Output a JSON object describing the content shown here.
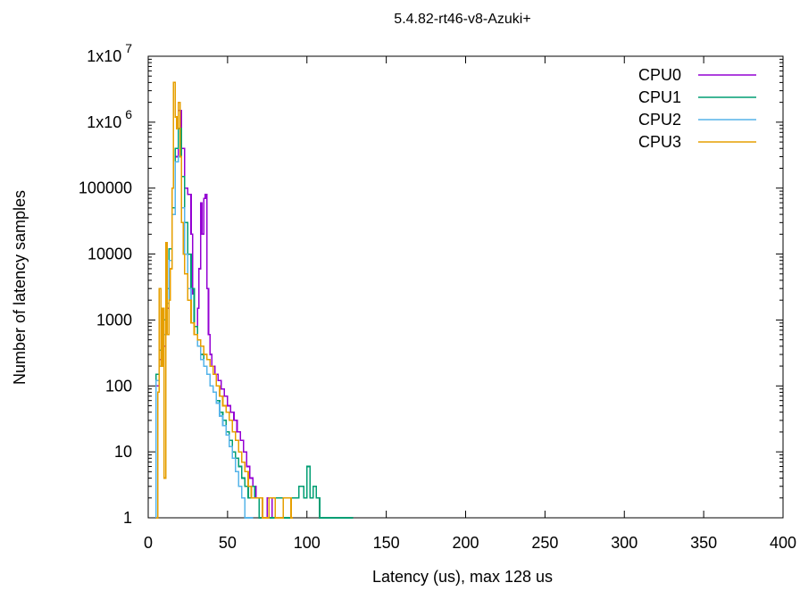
{
  "chart_data": {
    "type": "line",
    "title": "5.4.82-rt46-v8-Azuki+",
    "xlabel": "Latency (us), max 128 us",
    "ylabel": "Number of latency samples",
    "xlim": [
      0,
      400
    ],
    "ylim": [
      1,
      10000000
    ],
    "yscale": "log",
    "grid": false,
    "legend_position": "top-right",
    "x_ticks": [
      0,
      50,
      100,
      150,
      200,
      250,
      300,
      350,
      400
    ],
    "x_tick_labels": [
      "0",
      "50",
      "100",
      "150",
      "200",
      "250",
      "300",
      "350",
      "400"
    ],
    "y_ticks": [
      1,
      10,
      100,
      1000,
      10000,
      100000,
      1000000,
      10000000
    ],
    "y_tick_labels": [
      {
        "base": "1",
        "exp": ""
      },
      {
        "base": "10",
        "exp": ""
      },
      {
        "base": "100",
        "exp": ""
      },
      {
        "base": "1000",
        "exp": ""
      },
      {
        "base": "10000",
        "exp": ""
      },
      {
        "base": "100000",
        "exp": ""
      },
      {
        "base": "1x10",
        "exp": "6"
      },
      {
        "base": "1x10",
        "exp": "7"
      }
    ],
    "series": [
      {
        "name": "CPU0",
        "color": "#9400d3",
        "points": [
          [
            5,
            100
          ],
          [
            7,
            250
          ],
          [
            9,
            400
          ],
          [
            11,
            1500
          ],
          [
            13,
            6000
          ],
          [
            15,
            40000
          ],
          [
            17,
            300000
          ],
          [
            19,
            1500000
          ],
          [
            21,
            400000
          ],
          [
            23,
            100000
          ],
          [
            25,
            80000
          ],
          [
            27,
            20000
          ],
          [
            28,
            2500
          ],
          [
            29,
            800
          ],
          [
            31,
            1500
          ],
          [
            32,
            6000
          ],
          [
            33,
            60000
          ],
          [
            34,
            20000
          ],
          [
            35,
            70000
          ],
          [
            36,
            80000
          ],
          [
            37,
            3000
          ],
          [
            38,
            600
          ],
          [
            39,
            300
          ],
          [
            40,
            200
          ],
          [
            42,
            150
          ],
          [
            44,
            120
          ],
          [
            46,
            90
          ],
          [
            48,
            70
          ],
          [
            50,
            50
          ],
          [
            52,
            40
          ],
          [
            54,
            30
          ],
          [
            56,
            20
          ],
          [
            58,
            15
          ],
          [
            60,
            10
          ],
          [
            62,
            6
          ],
          [
            64,
            4
          ],
          [
            66,
            3
          ],
          [
            68,
            2
          ],
          [
            70,
            2
          ],
          [
            72,
            1
          ],
          [
            75,
            2
          ],
          [
            78,
            1
          ],
          [
            82,
            1
          ],
          [
            88,
            1
          ]
        ]
      },
      {
        "name": "CPU1",
        "color": "#009e73",
        "points": [
          [
            5,
            150
          ],
          [
            7,
            350
          ],
          [
            9,
            1000
          ],
          [
            11,
            3000
          ],
          [
            13,
            12000
          ],
          [
            15,
            50000
          ],
          [
            17,
            400000
          ],
          [
            19,
            800000
          ],
          [
            21,
            150000
          ],
          [
            23,
            30000
          ],
          [
            25,
            10000
          ],
          [
            27,
            3000
          ],
          [
            29,
            800
          ],
          [
            31,
            500
          ],
          [
            33,
            300
          ],
          [
            35,
            200
          ],
          [
            37,
            150
          ],
          [
            39,
            100
          ],
          [
            41,
            80
          ],
          [
            43,
            60
          ],
          [
            45,
            40
          ],
          [
            47,
            30
          ],
          [
            49,
            20
          ],
          [
            51,
            15
          ],
          [
            53,
            10
          ],
          [
            55,
            8
          ],
          [
            57,
            6
          ],
          [
            59,
            4
          ],
          [
            61,
            3
          ],
          [
            63,
            2
          ],
          [
            65,
            3
          ],
          [
            67,
            2
          ],
          [
            70,
            1
          ],
          [
            75,
            1
          ],
          [
            80,
            2
          ],
          [
            85,
            1
          ],
          [
            90,
            2
          ],
          [
            95,
            3
          ],
          [
            98,
            2
          ],
          [
            100,
            6
          ],
          [
            102,
            2
          ],
          [
            104,
            3
          ],
          [
            106,
            2
          ],
          [
            108,
            1
          ],
          [
            110,
            1
          ],
          [
            128,
            1
          ]
        ]
      },
      {
        "name": "CPU2",
        "color": "#56b4e9",
        "points": [
          [
            5,
            120
          ],
          [
            7,
            200
          ],
          [
            9,
            600
          ],
          [
            11,
            1800
          ],
          [
            13,
            8000
          ],
          [
            15,
            40000
          ],
          [
            17,
            250000
          ],
          [
            19,
            300000
          ],
          [
            21,
            50000
          ],
          [
            23,
            10000
          ],
          [
            25,
            3000
          ],
          [
            27,
            900
          ],
          [
            29,
            600
          ],
          [
            31,
            400
          ],
          [
            33,
            250
          ],
          [
            35,
            200
          ],
          [
            37,
            150
          ],
          [
            39,
            100
          ],
          [
            41,
            80
          ],
          [
            43,
            55
          ],
          [
            45,
            35
          ],
          [
            47,
            25
          ],
          [
            49,
            18
          ],
          [
            51,
            12
          ],
          [
            53,
            8
          ],
          [
            55,
            5
          ],
          [
            57,
            3
          ],
          [
            59,
            2
          ],
          [
            61,
            1
          ],
          [
            63,
            1
          ],
          [
            65,
            1
          ]
        ]
      },
      {
        "name": "CPU3",
        "color": "#e69f00",
        "points": [
          [
            5,
            1
          ],
          [
            6,
            80
          ],
          [
            7,
            3000
          ],
          [
            8,
            200
          ],
          [
            9,
            1500
          ],
          [
            10,
            4
          ],
          [
            11,
            15000
          ],
          [
            12,
            600
          ],
          [
            13,
            2000
          ],
          [
            14,
            6000
          ],
          [
            15,
            100000
          ],
          [
            16,
            4000000
          ],
          [
            17,
            1200000
          ],
          [
            18,
            800000
          ],
          [
            19,
            2000000
          ],
          [
            20,
            300000
          ],
          [
            21,
            30000
          ],
          [
            22,
            10000
          ],
          [
            23,
            5000
          ],
          [
            25,
            2000
          ],
          [
            27,
            900
          ],
          [
            29,
            600
          ],
          [
            31,
            500
          ],
          [
            33,
            400
          ],
          [
            35,
            300
          ],
          [
            37,
            250
          ],
          [
            39,
            200
          ],
          [
            41,
            150
          ],
          [
            43,
            100
          ],
          [
            45,
            70
          ],
          [
            47,
            50
          ],
          [
            49,
            40
          ],
          [
            51,
            30
          ],
          [
            53,
            20
          ],
          [
            55,
            15
          ],
          [
            57,
            10
          ],
          [
            59,
            7
          ],
          [
            61,
            5
          ],
          [
            63,
            3
          ],
          [
            65,
            2
          ],
          [
            68,
            2
          ],
          [
            72,
            1
          ],
          [
            76,
            2
          ],
          [
            80,
            1
          ],
          [
            85,
            2
          ],
          [
            90,
            1
          ]
        ]
      }
    ]
  }
}
